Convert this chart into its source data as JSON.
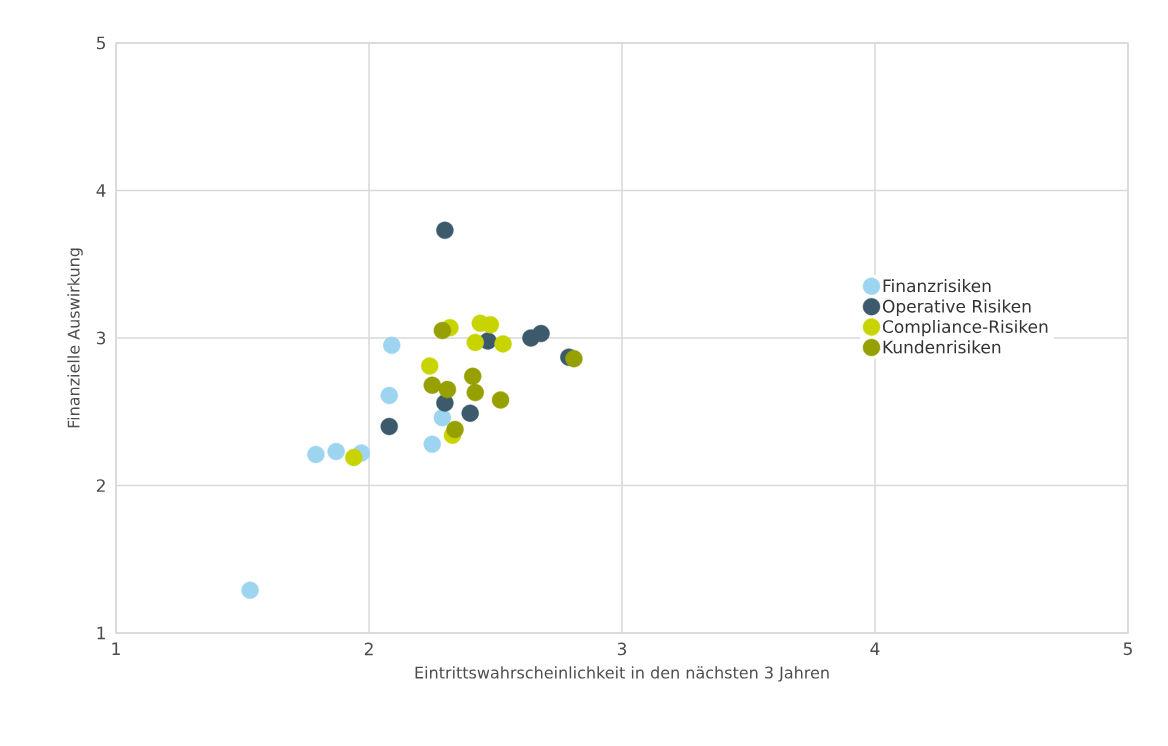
{
  "chart_data": {
    "type": "scatter",
    "xlabel": "Eintrittswahrscheinlichkeit in den nächsten 3 Jahren",
    "ylabel": "Finanzielle Auswirkung",
    "xlim": [
      1,
      5
    ],
    "ylim": [
      1,
      5
    ],
    "xticks": [
      1,
      2,
      3,
      4,
      5
    ],
    "yticks": [
      1,
      2,
      3,
      4,
      5
    ],
    "grid": true,
    "legend": "right",
    "series": [
      {
        "name": "Finanzrisiken",
        "color": "#9dd4ef",
        "x": [
          1.53,
          1.79,
          1.87,
          1.97,
          2.08,
          2.09,
          2.25,
          2.29
        ],
        "values": [
          1.29,
          2.21,
          2.23,
          2.22,
          2.61,
          2.95,
          2.28,
          2.46
        ]
      },
      {
        "name": "Operative Risiken",
        "color": "#3d5a6c",
        "x": [
          2.3,
          2.08,
          2.3,
          2.4,
          2.47,
          2.64,
          2.68,
          2.79
        ],
        "values": [
          3.73,
          2.4,
          2.56,
          2.49,
          2.98,
          3.0,
          3.03,
          2.87
        ]
      },
      {
        "name": "Compliance-Risiken",
        "color": "#c8d400",
        "x": [
          1.94,
          2.24,
          2.32,
          2.44,
          2.48,
          2.42,
          2.53,
          2.33
        ],
        "values": [
          2.19,
          2.81,
          3.07,
          3.1,
          3.09,
          2.97,
          2.96,
          2.34
        ]
      },
      {
        "name": "Kundenrisiken",
        "color": "#96a000",
        "x": [
          2.29,
          2.25,
          2.31,
          2.41,
          2.42,
          2.52,
          2.34,
          2.81
        ],
        "values": [
          3.05,
          2.68,
          2.65,
          2.74,
          2.63,
          2.58,
          2.38,
          2.86
        ]
      }
    ]
  }
}
